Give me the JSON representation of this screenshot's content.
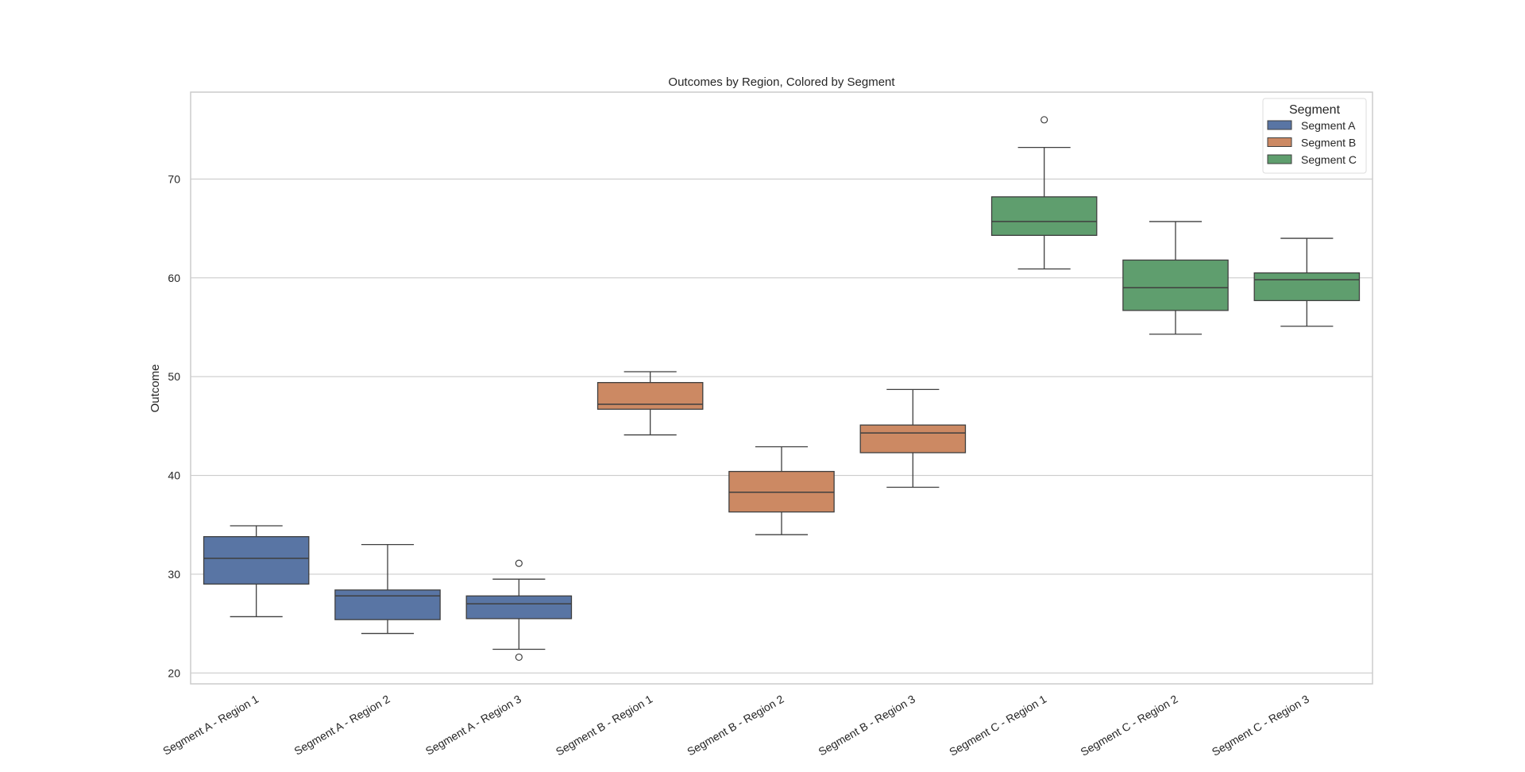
{
  "chart_data": {
    "type": "box",
    "title": "Outcomes by Region, Colored by Segment",
    "xlabel": "",
    "ylabel": "Outcome",
    "ylim": [
      18.9,
      78.8
    ],
    "yticks": [
      20,
      30,
      40,
      50,
      60,
      70
    ],
    "grid": "horizontal",
    "legend": {
      "title": "Segment",
      "placement": "top-right",
      "entries": [
        "Segment A",
        "Segment B",
        "Segment C"
      ]
    },
    "colors": {
      "Segment A": "#5975a4",
      "Segment B": "#cc8963",
      "Segment C": "#5f9e6e",
      "lines": "#3f3f3f",
      "grid": "#cccccc"
    },
    "categories": [
      "Segment A - Region 1",
      "Segment A - Region 2",
      "Segment A - Region 3",
      "Segment B - Region 1",
      "Segment B - Region 2",
      "Segment B - Region 3",
      "Segment C - Region 1",
      "Segment C - Region 2",
      "Segment C - Region 3"
    ],
    "boxes": [
      {
        "segment": "Segment A",
        "whisker_low": 25.7,
        "q1": 29.0,
        "median": 31.6,
        "q3": 33.8,
        "whisker_high": 34.9,
        "outliers": []
      },
      {
        "segment": "Segment A",
        "whisker_low": 24.0,
        "q1": 25.4,
        "median": 27.8,
        "q3": 28.4,
        "whisker_high": 33.0,
        "outliers": []
      },
      {
        "segment": "Segment A",
        "whisker_low": 22.4,
        "q1": 25.5,
        "median": 27.0,
        "q3": 27.8,
        "whisker_high": 29.5,
        "outliers": [
          31.1,
          21.6
        ]
      },
      {
        "segment": "Segment B",
        "whisker_low": 44.1,
        "q1": 46.7,
        "median": 47.2,
        "q3": 49.4,
        "whisker_high": 50.5,
        "outliers": []
      },
      {
        "segment": "Segment B",
        "whisker_low": 34.0,
        "q1": 36.3,
        "median": 38.3,
        "q3": 40.4,
        "whisker_high": 42.9,
        "outliers": []
      },
      {
        "segment": "Segment B",
        "whisker_low": 38.8,
        "q1": 42.3,
        "median": 44.3,
        "q3": 45.1,
        "whisker_high": 48.7,
        "outliers": []
      },
      {
        "segment": "Segment C",
        "whisker_low": 60.9,
        "q1": 64.3,
        "median": 65.7,
        "q3": 68.2,
        "whisker_high": 73.2,
        "outliers": [
          76.0
        ]
      },
      {
        "segment": "Segment C",
        "whisker_low": 54.3,
        "q1": 56.7,
        "median": 59.0,
        "q3": 61.8,
        "whisker_high": 65.7,
        "outliers": []
      },
      {
        "segment": "Segment C",
        "whisker_low": 55.1,
        "q1": 57.7,
        "median": 59.8,
        "q3": 60.5,
        "whisker_high": 64.0,
        "outliers": []
      }
    ]
  }
}
